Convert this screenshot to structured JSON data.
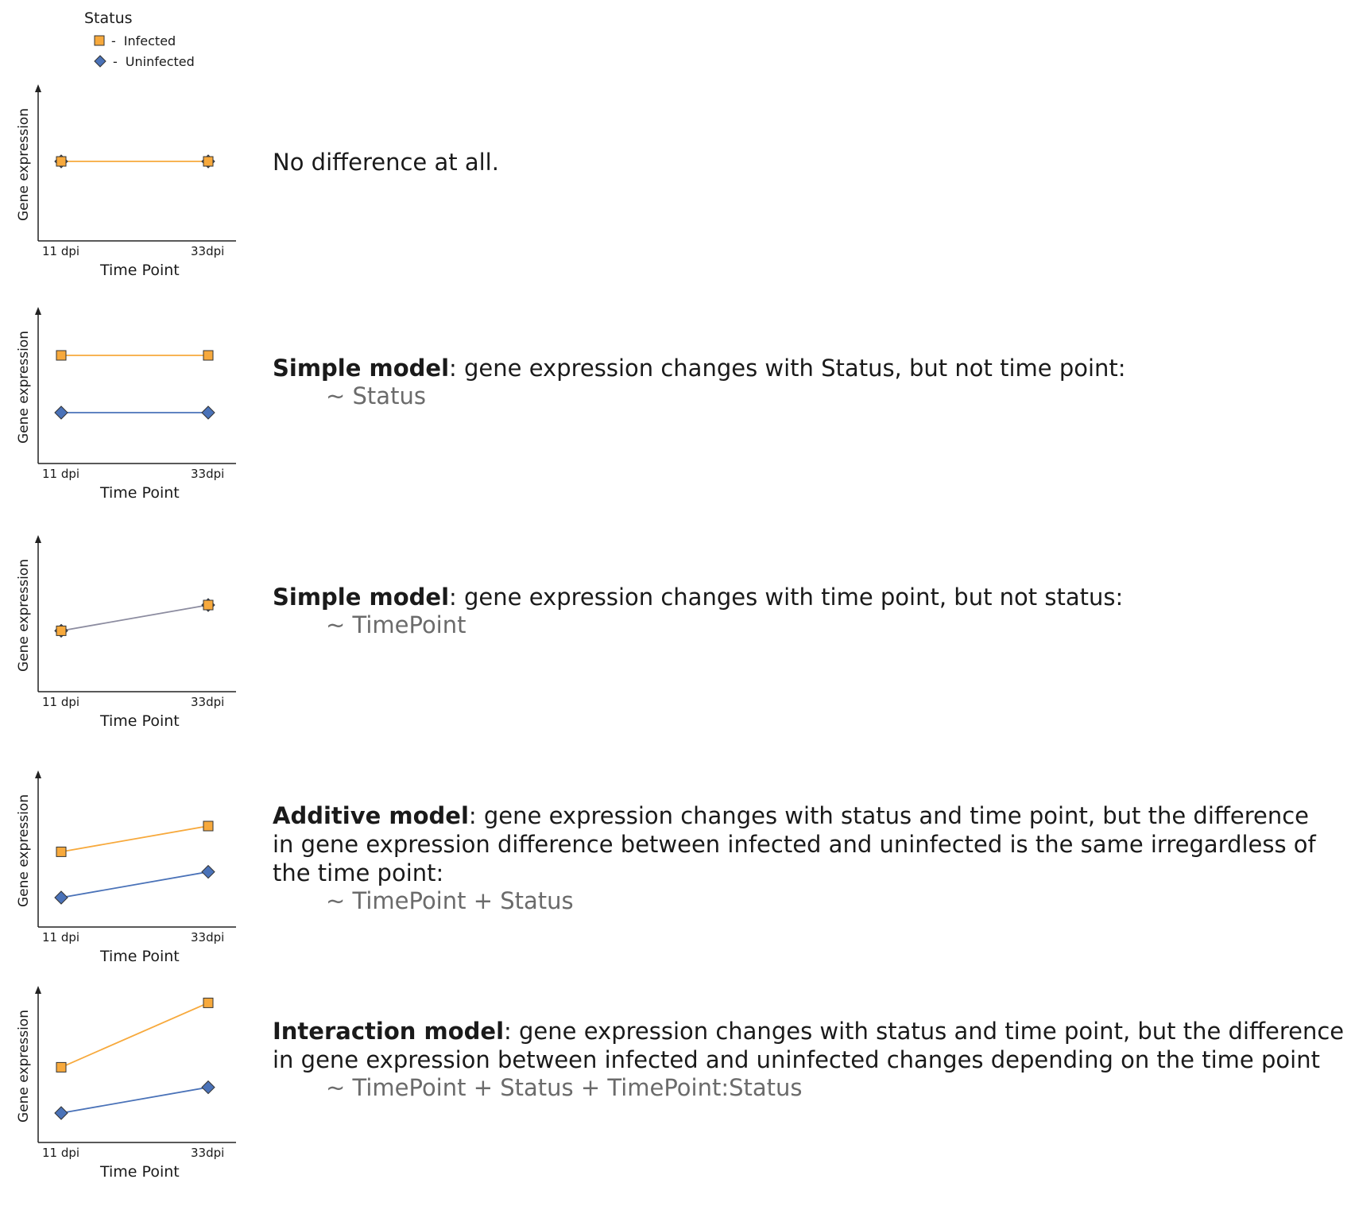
{
  "legend": {
    "title": "Status",
    "items": [
      {
        "label": "Infected",
        "marker": "square",
        "color": "#f7a93c"
      },
      {
        "label": "Uninfected",
        "marker": "diamond",
        "color": "#4a72b8"
      }
    ],
    "dash": "-"
  },
  "colors": {
    "infected": "#f7a93c",
    "uninfected": "#4a72b8",
    "overlap": "#8c8ca0"
  },
  "panels": [
    {
      "ylabel": "Gene expression",
      "xlabel": "Time Point",
      "xticks": [
        "11 dpi",
        "33dpi"
      ],
      "infected": [
        0.5,
        0.5
      ],
      "uninfected": [
        0.5,
        0.5
      ],
      "desc_bold": "",
      "desc_rest": "No difference at all.",
      "formula": ""
    },
    {
      "ylabel": "Gene expression",
      "xlabel": "Time Point",
      "xticks": [
        "11 dpi",
        "33dpi"
      ],
      "infected": [
        0.7,
        0.7
      ],
      "uninfected": [
        0.3,
        0.3
      ],
      "desc_bold": "Simple model",
      "desc_rest": ": gene expression changes with  Status, but not time point:",
      "formula": "~ Status"
    },
    {
      "ylabel": "Gene expression",
      "xlabel": "Time Point",
      "xticks": [
        "11 dpi",
        "33dpi"
      ],
      "infected": [
        0.37,
        0.55
      ],
      "uninfected": [
        0.37,
        0.55
      ],
      "desc_bold": "Simple model",
      "desc_rest": ": gene expression changes with time point, but not status:",
      "formula": "~ TimePoint"
    },
    {
      "ylabel": "Gene expression",
      "xlabel": "Time Point",
      "xticks": [
        "11 dpi",
        "33dpi"
      ],
      "infected": [
        0.47,
        0.65
      ],
      "uninfected": [
        0.15,
        0.33
      ],
      "desc_bold": "Additive model",
      "desc_rest": ": gene expression changes with status and time point, but the difference",
      "desc_line2": "in gene expression difference between infected and uninfected is the same irregardless of",
      "desc_line3": "the time point:",
      "formula": "~ TimePoint + Status"
    },
    {
      "ylabel": "Gene expression",
      "xlabel": "Time Point",
      "xticks": [
        "11 dpi",
        "33dpi"
      ],
      "infected": [
        0.47,
        0.92
      ],
      "uninfected": [
        0.15,
        0.33
      ],
      "desc_bold": "Interaction model",
      "desc_rest": ": gene expression changes with status and time point, but the difference",
      "desc_line2": "in gene expression between infected and uninfected changes depending on the time point",
      "formula": "~ TimePoint + Status +  TimePoint:Status"
    }
  ]
}
